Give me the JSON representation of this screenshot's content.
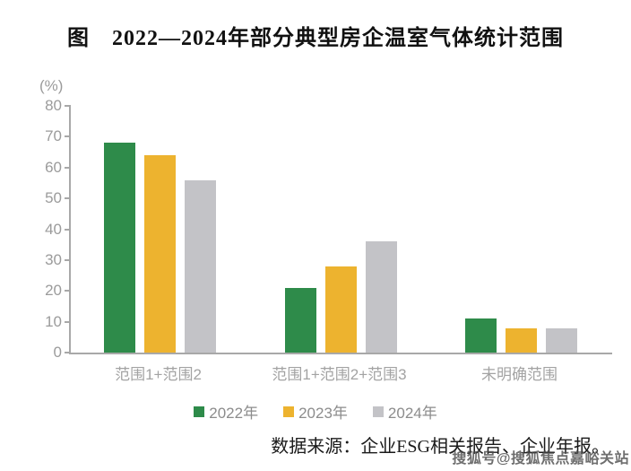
{
  "figure": {
    "title": "图　2022—2024年部分典型房企温室气体统计范围",
    "unit_label": "(%)",
    "source_note": "数据来源：企业ESG相关报告、企业年报。",
    "watermark": "搜狐号@搜狐焦点嘉峪关站"
  },
  "chart_data": {
    "type": "bar",
    "title": "图 2022—2024年部分典型房企温室气体统计范围",
    "xlabel": "",
    "ylabel": "(%)",
    "categories": [
      "范围1+范围2",
      "范围1+范围2+范围3",
      "未明确范围"
    ],
    "series": [
      {
        "name": "2022年",
        "color": "#2e8b4a",
        "values": [
          68,
          21,
          11
        ]
      },
      {
        "name": "2023年",
        "color": "#edb32f",
        "values": [
          64,
          28,
          8
        ]
      },
      {
        "name": "2024年",
        "color": "#c3c3c7",
        "values": [
          56,
          36,
          8
        ]
      }
    ],
    "ylim": [
      0,
      80
    ],
    "ytick_step": 10,
    "grid": false,
    "legend_position": "bottom",
    "style_colors": {
      "axis": "#a8a8a8",
      "tick_text": "#9b9b9b",
      "category_text": "#a3a3a3",
      "legend_text": "#8c8c8c",
      "title_text": "#111111"
    }
  }
}
